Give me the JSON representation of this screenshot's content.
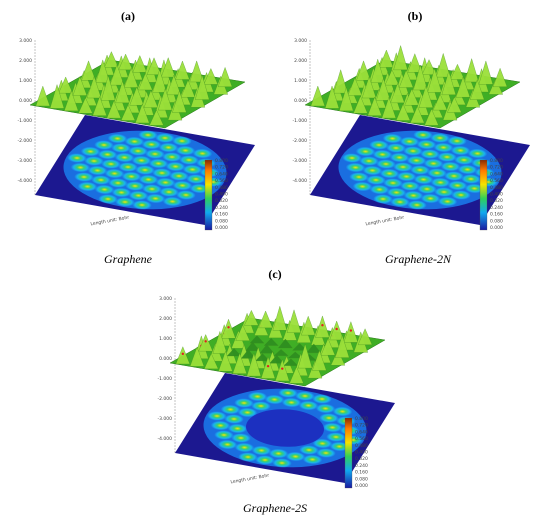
{
  "panels": [
    {
      "label": "(a)",
      "caption": "Graphene",
      "axis_label": "Length unit: Bohr",
      "z_ticks": [
        "3.000",
        "2.000",
        "1.000",
        "0.000",
        "-1.000",
        "-2.000",
        "-3.000",
        "-4.000"
      ],
      "colorbar_ticks": [
        "0.800",
        "0.720",
        "0.640",
        "0.560",
        "0.480",
        "0.400",
        "0.320",
        "0.240",
        "0.160",
        "0.080",
        "0.000"
      ]
    },
    {
      "label": "(b)",
      "caption": "Graphene-2N",
      "axis_label": "Length unit: Bohr",
      "z_ticks": [
        "3.000",
        "2.000",
        "1.000",
        "0.000",
        "-1.000",
        "-2.000",
        "-3.000",
        "-4.000"
      ],
      "colorbar_ticks": [
        "0.800",
        "0.720",
        "0.640",
        "0.560",
        "0.480",
        "0.400",
        "0.320",
        "0.240",
        "0.160",
        "0.080",
        "0.000"
      ]
    },
    {
      "label": "(c)",
      "caption": "Graphene-2S",
      "axis_label": "Length unit: Bohr",
      "z_ticks": [
        "3.000",
        "2.000",
        "1.000",
        "0.000",
        "-1.000",
        "-2.000",
        "-3.000",
        "-4.000"
      ],
      "colorbar_ticks": [
        "0.800",
        "0.720",
        "0.640",
        "0.560",
        "0.480",
        "0.400",
        "0.320",
        "0.240",
        "0.160",
        "0.080",
        "0.000"
      ]
    }
  ]
}
